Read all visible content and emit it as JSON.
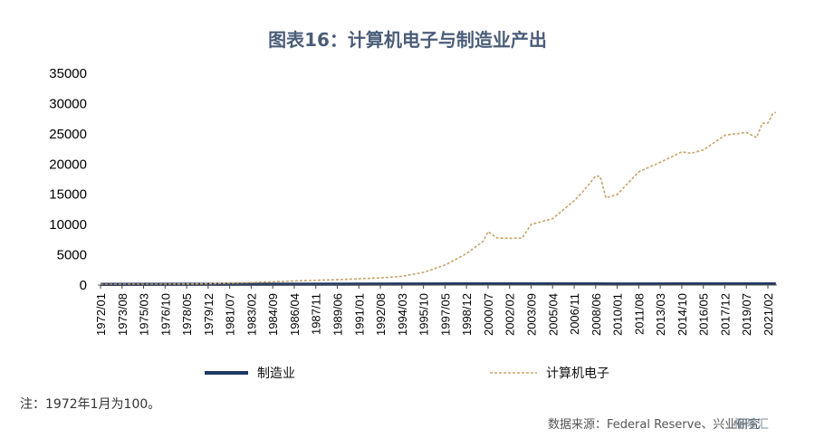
{
  "title": "图表16：计算机电子与制造业产出",
  "note": "注：1972年1月为100。",
  "source": "数据来源：Federal Reserve、兴业研究",
  "watermark": "格隆汇",
  "legend": {
    "manufacturing": "制造业",
    "computer": "计算机电子"
  },
  "colors": {
    "manufacturing": "#1f3864",
    "computer": "#c8a36b"
  },
  "chart_data": {
    "type": "line",
    "title": "图表16：计算机电子与制造业产出",
    "xlabel": "",
    "ylabel": "",
    "ylim": [
      0,
      35000
    ],
    "yticks": [
      0,
      5000,
      10000,
      15000,
      20000,
      25000,
      30000,
      35000
    ],
    "ytick_labels": [
      "0",
      "5000",
      "10000",
      "15000",
      "20000",
      "25000",
      "30000",
      "35000"
    ],
    "xtick_labels": [
      "1972/01",
      "1973/08",
      "1975/03",
      "1976/10",
      "1978/05",
      "1979/12",
      "1981/07",
      "1983/02",
      "1984/09",
      "1986/04",
      "1987/11",
      "1989/06",
      "1991/01",
      "1992/08",
      "1994/03",
      "1995/10",
      "1997/05",
      "1998/12",
      "2000/07",
      "2002/02",
      "2003/09",
      "2005/04",
      "2006/11",
      "2008/06",
      "2010/01",
      "2011/08",
      "2013/03",
      "2014/10",
      "2016/05",
      "2017/12",
      "2019/07",
      "2021/02"
    ],
    "grid": false,
    "legend_position": "bottom",
    "series": [
      {
        "name": "制造业",
        "style": "solid",
        "points": [
          [
            "1972/01",
            100
          ],
          [
            "1980/01",
            130
          ],
          [
            "1990/01",
            150
          ],
          [
            "2000/07",
            190
          ],
          [
            "2008/06",
            200
          ],
          [
            "2010/01",
            170
          ],
          [
            "2021/02",
            190
          ],
          [
            "2021/09",
            200
          ]
        ]
      },
      {
        "name": "计算机电子",
        "style": "dashed",
        "points": [
          [
            "1972/01",
            100
          ],
          [
            "1976/10",
            140
          ],
          [
            "1979/12",
            220
          ],
          [
            "1983/02",
            420
          ],
          [
            "1986/04",
            680
          ],
          [
            "1989/06",
            900
          ],
          [
            "1992/08",
            1180
          ],
          [
            "1994/03",
            1450
          ],
          [
            "1995/10",
            2100
          ],
          [
            "1997/05",
            3300
          ],
          [
            "1998/12",
            5200
          ],
          [
            "2000/03",
            7500
          ],
          [
            "2000/07",
            8600
          ],
          [
            "2001/03",
            8000
          ],
          [
            "2002/02",
            7500
          ],
          [
            "2003/01",
            8000
          ],
          [
            "2003/09",
            9800
          ],
          [
            "2005/04",
            11200
          ],
          [
            "2006/11",
            13700
          ],
          [
            "2007/06",
            15500
          ],
          [
            "2008/06",
            17800
          ],
          [
            "2008/10",
            18200
          ],
          [
            "2009/03",
            14200
          ],
          [
            "2010/01",
            15200
          ],
          [
            "2011/08",
            18500
          ],
          [
            "2013/03",
            20500
          ],
          [
            "2014/10",
            21800
          ],
          [
            "2015/06",
            22000
          ],
          [
            "2016/05",
            22100
          ],
          [
            "2017/12",
            25000
          ],
          [
            "2019/07",
            25000
          ],
          [
            "2020/04",
            24600
          ],
          [
            "2020/09",
            26500
          ],
          [
            "2021/02",
            27000
          ],
          [
            "2021/06",
            28000
          ],
          [
            "2021/09",
            28800
          ]
        ]
      }
    ]
  }
}
